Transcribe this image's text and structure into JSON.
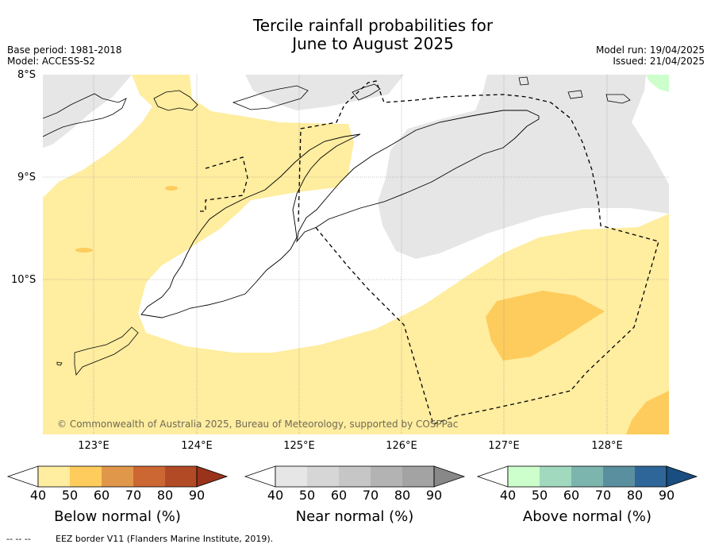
{
  "header": {
    "title_line1": "Tercile rainfall probabilities for",
    "title_line2": "June to August 2025",
    "base_period": "Base period: 1981-2018",
    "model": "Model: ACCESS-S2",
    "model_run": "Model run: 19/04/2025",
    "issued": "Issued: 21/04/2025"
  },
  "map": {
    "lat_labels": [
      "8°S",
      "9°S",
      "10°S"
    ],
    "lon_labels": [
      "123°E",
      "124°E",
      "125°E",
      "126°E",
      "127°E",
      "128°E"
    ],
    "copyright": "© Commonwealth of Australia 2025, Bureau of Meteorology, supported by COSPPac",
    "colors": {
      "ocean_bg": "#ffffff",
      "below_50": "#ffeda0",
      "below_60": "#fecc5c",
      "near_40": "#e6e6e6",
      "above_40": "#ccffcc",
      "coastline": "#000000",
      "eez": "#000000"
    }
  },
  "colorbars": [
    {
      "label": "Below normal (%)",
      "ticks": [
        "40",
        "50",
        "60",
        "70",
        "80",
        "90"
      ],
      "colors": [
        "#ffffff",
        "#ffeda0",
        "#fecc5c",
        "#e1974a",
        "#cc6633",
        "#b34a26",
        "#99331a"
      ]
    },
    {
      "label": "Near normal (%)",
      "ticks": [
        "40",
        "50",
        "60",
        "70",
        "80",
        "90"
      ],
      "colors": [
        "#ffffff",
        "#e6e6e6",
        "#d6d6d6",
        "#c6c6c6",
        "#b3b3b3",
        "#a3a3a3",
        "#888888"
      ]
    },
    {
      "label": "Above normal (%)",
      "ticks": [
        "40",
        "50",
        "60",
        "70",
        "80",
        "90"
      ],
      "colors": [
        "#ffffff",
        "#ccffcc",
        "#a1d9bf",
        "#7cb5ad",
        "#5a8fa0",
        "#2e6699",
        "#1a4d80"
      ]
    }
  ],
  "footer": {
    "legend_marker": "-- -- --",
    "eez_text": "EEZ border V11 (Flanders Marine Institute, 2019)."
  }
}
